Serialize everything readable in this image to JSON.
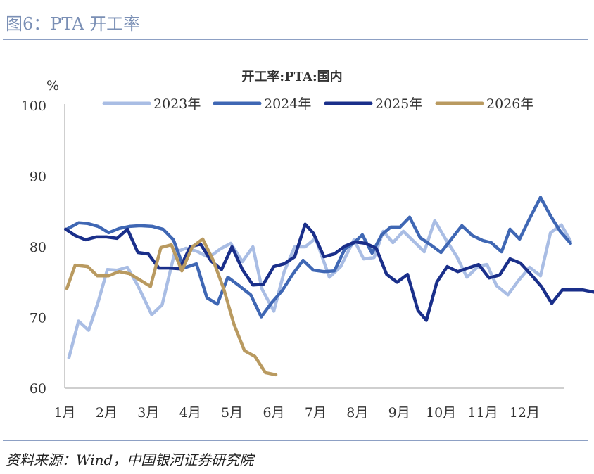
{
  "figure": {
    "title": "图6：PTA 开工率",
    "source": "资料来源：Wind，中国银河证券研究院"
  },
  "chart_data": {
    "type": "line",
    "title": "开工率:PTA:国内",
    "ylabel": "%",
    "ylim": [
      60,
      100
    ],
    "yticks": [
      60,
      70,
      80,
      90,
      100
    ],
    "xlim": [
      1,
      13
    ],
    "xticks": [
      {
        "label": "1月",
        "x": 1
      },
      {
        "label": "2月",
        "x": 2
      },
      {
        "label": "3月",
        "x": 3
      },
      {
        "label": "4月",
        "x": 4
      },
      {
        "label": "5月",
        "x": 5
      },
      {
        "label": "6月",
        "x": 6
      },
      {
        "label": "7月",
        "x": 7
      },
      {
        "label": "8月",
        "x": 8
      },
      {
        "label": "9月",
        "x": 9
      },
      {
        "label": "10月",
        "x": 10
      },
      {
        "label": "11月",
        "x": 11
      },
      {
        "label": "12月",
        "x": 12
      }
    ],
    "legend_position": "top",
    "series": [
      {
        "name": "2023年",
        "color": "#a9bde4",
        "points": [
          [
            1.1,
            64.3
          ],
          [
            1.33,
            69.5
          ],
          [
            1.57,
            68.2
          ],
          [
            1.8,
            72.2
          ],
          [
            2.02,
            76.8
          ],
          [
            2.25,
            76.7
          ],
          [
            2.5,
            77.1
          ],
          [
            2.75,
            74.5
          ],
          [
            3.08,
            70.4
          ],
          [
            3.33,
            71.8
          ],
          [
            3.63,
            79.2
          ],
          [
            3.9,
            79.8
          ],
          [
            4.15,
            79.4
          ],
          [
            4.45,
            78.5
          ],
          [
            4.72,
            79.7
          ],
          [
            4.97,
            80.5
          ],
          [
            5.25,
            77.9
          ],
          [
            5.5,
            80.0
          ],
          [
            5.72,
            74.0
          ],
          [
            6.0,
            70.9
          ],
          [
            6.25,
            76.5
          ],
          [
            6.5,
            80.0
          ],
          [
            6.75,
            80.0
          ],
          [
            7.0,
            81.2
          ],
          [
            7.33,
            75.7
          ],
          [
            7.6,
            77.2
          ],
          [
            7.92,
            81.0
          ],
          [
            8.15,
            78.3
          ],
          [
            8.4,
            78.5
          ],
          [
            8.62,
            82.2
          ],
          [
            8.85,
            80.6
          ],
          [
            9.1,
            82.2
          ],
          [
            9.38,
            80.6
          ],
          [
            9.6,
            79.3
          ],
          [
            9.85,
            83.7
          ],
          [
            10.12,
            81.0
          ],
          [
            10.38,
            78.6
          ],
          [
            10.62,
            75.7
          ],
          [
            10.9,
            77.3
          ],
          [
            11.1,
            77.5
          ],
          [
            11.33,
            74.5
          ],
          [
            11.6,
            73.2
          ],
          [
            11.85,
            75.2
          ],
          [
            12.12,
            77.1
          ],
          [
            12.38,
            75.9
          ],
          [
            12.62,
            82.0
          ],
          [
            12.88,
            83.1
          ],
          [
            13.1,
            80.8
          ]
        ]
      },
      {
        "name": "2024年",
        "color": "#3f67b4",
        "points": [
          [
            1.05,
            82.5
          ],
          [
            1.33,
            83.4
          ],
          [
            1.55,
            83.3
          ],
          [
            1.8,
            82.9
          ],
          [
            2.05,
            82.0
          ],
          [
            2.3,
            82.6
          ],
          [
            2.55,
            82.9
          ],
          [
            2.8,
            83.0
          ],
          [
            3.1,
            82.9
          ],
          [
            3.35,
            82.5
          ],
          [
            3.6,
            81.0
          ],
          [
            3.85,
            77.0
          ],
          [
            4.15,
            77.6
          ],
          [
            4.4,
            72.8
          ],
          [
            4.65,
            71.9
          ],
          [
            4.9,
            75.7
          ],
          [
            5.15,
            74.6
          ],
          [
            5.45,
            73.2
          ],
          [
            5.7,
            70.1
          ],
          [
            5.95,
            72.1
          ],
          [
            6.2,
            73.8
          ],
          [
            6.45,
            76.1
          ],
          [
            6.7,
            78.1
          ],
          [
            6.95,
            76.7
          ],
          [
            7.2,
            76.5
          ],
          [
            7.45,
            76.6
          ],
          [
            7.7,
            79.7
          ],
          [
            7.9,
            80.5
          ],
          [
            8.12,
            81.7
          ],
          [
            8.35,
            79.1
          ],
          [
            8.58,
            81.7
          ],
          [
            8.8,
            82.8
          ],
          [
            9.02,
            82.8
          ],
          [
            9.25,
            84.2
          ],
          [
            9.5,
            81.3
          ],
          [
            9.75,
            80.3
          ],
          [
            10.0,
            79.2
          ],
          [
            10.25,
            81.1
          ],
          [
            10.5,
            83.0
          ],
          [
            10.75,
            81.6
          ],
          [
            11.0,
            80.9
          ],
          [
            11.2,
            80.6
          ],
          [
            11.45,
            79.3
          ],
          [
            11.65,
            82.5
          ],
          [
            11.88,
            81.1
          ],
          [
            12.12,
            84.0
          ],
          [
            12.38,
            87.0
          ],
          [
            12.62,
            84.4
          ],
          [
            12.85,
            82.2
          ],
          [
            13.1,
            80.5
          ]
        ]
      },
      {
        "name": "2025年",
        "color": "#1a2f8a",
        "points": [
          [
            1.02,
            82.5
          ],
          [
            1.25,
            81.6
          ],
          [
            1.5,
            81.0
          ],
          [
            1.75,
            81.4
          ],
          [
            2.0,
            81.4
          ],
          [
            2.25,
            81.2
          ],
          [
            2.5,
            82.5
          ],
          [
            2.75,
            79.2
          ],
          [
            3.0,
            79.0
          ],
          [
            3.25,
            77.0
          ],
          [
            3.5,
            77.0
          ],
          [
            3.75,
            76.9
          ],
          [
            4.0,
            80.0
          ],
          [
            4.25,
            80.4
          ],
          [
            4.5,
            78.0
          ],
          [
            4.75,
            76.8
          ],
          [
            5.0,
            80.0
          ],
          [
            5.25,
            76.8
          ],
          [
            5.5,
            74.6
          ],
          [
            5.75,
            74.7
          ],
          [
            6.0,
            77.2
          ],
          [
            6.25,
            77.6
          ],
          [
            6.5,
            78.6
          ],
          [
            6.75,
            83.2
          ],
          [
            6.95,
            81.9
          ],
          [
            7.2,
            78.6
          ],
          [
            7.45,
            79.0
          ],
          [
            7.7,
            80.1
          ],
          [
            7.95,
            80.7
          ],
          [
            8.2,
            80.5
          ],
          [
            8.45,
            79.8
          ],
          [
            8.7,
            76.1
          ],
          [
            8.95,
            75.0
          ],
          [
            9.2,
            76.1
          ],
          [
            9.45,
            71.0
          ],
          [
            9.65,
            69.6
          ],
          [
            9.9,
            75.0
          ],
          [
            10.15,
            77.2
          ],
          [
            10.4,
            76.5
          ],
          [
            10.65,
            77.0
          ],
          [
            10.9,
            77.5
          ],
          [
            11.15,
            75.6
          ],
          [
            11.4,
            76.0
          ],
          [
            11.65,
            78.3
          ],
          [
            11.9,
            77.7
          ],
          [
            12.15,
            76.1
          ],
          [
            12.4,
            74.4
          ],
          [
            12.65,
            72.0
          ],
          [
            12.9,
            73.9
          ],
          [
            13.15,
            73.9
          ],
          [
            13.4,
            73.9
          ],
          [
            13.65,
            73.6
          ]
        ]
      },
      {
        "name": "2026年",
        "color": "#b99a60",
        "points": [
          [
            1.05,
            74.1
          ],
          [
            1.25,
            77.4
          ],
          [
            1.55,
            77.2
          ],
          [
            1.78,
            75.9
          ],
          [
            2.05,
            75.9
          ],
          [
            2.3,
            76.5
          ],
          [
            2.55,
            76.2
          ],
          [
            2.8,
            75.3
          ],
          [
            3.05,
            74.4
          ],
          [
            3.3,
            79.9
          ],
          [
            3.55,
            80.3
          ],
          [
            3.8,
            76.6
          ],
          [
            4.05,
            80.0
          ],
          [
            4.3,
            81.1
          ],
          [
            4.55,
            78.1
          ],
          [
            4.8,
            74.1
          ],
          [
            5.05,
            69.0
          ],
          [
            5.3,
            65.3
          ],
          [
            5.55,
            64.5
          ],
          [
            5.8,
            62.2
          ],
          [
            6.05,
            61.9
          ]
        ]
      }
    ]
  }
}
